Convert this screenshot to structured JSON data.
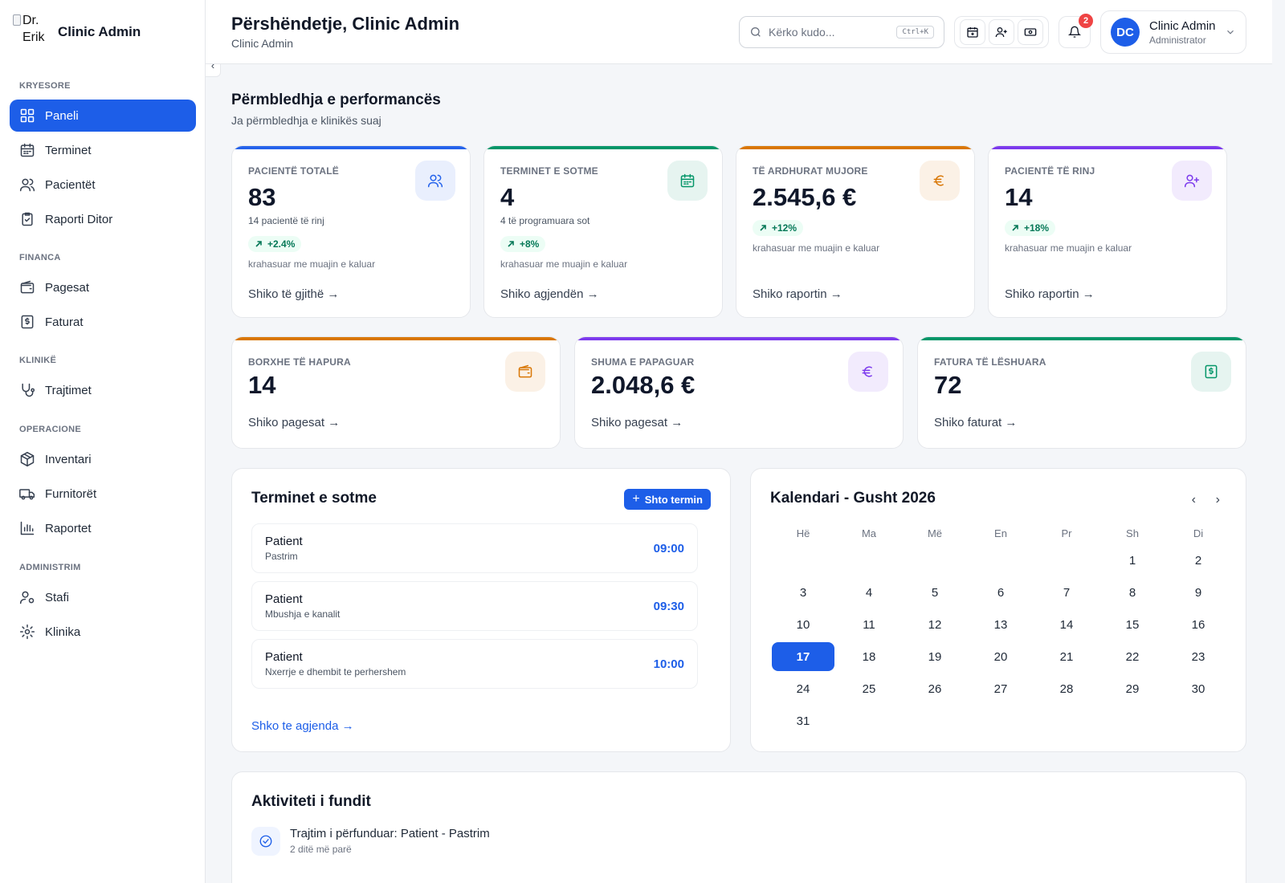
{
  "brand": {
    "logo_alt": "Dr. Erik",
    "name": "Clinic Admin"
  },
  "sidebar": {
    "sections": [
      {
        "title": "KRYESORE",
        "items": [
          {
            "label": "Paneli",
            "icon": "grid-icon",
            "active": true
          },
          {
            "label": "Terminet",
            "icon": "calendar-icon"
          },
          {
            "label": "Pacientët",
            "icon": "users-icon"
          },
          {
            "label": "Raporti Ditor",
            "icon": "clipboard-check-icon"
          }
        ]
      },
      {
        "title": "FINANCA",
        "items": [
          {
            "label": "Pagesat",
            "icon": "wallet-icon"
          },
          {
            "label": "Faturat",
            "icon": "invoice-icon"
          }
        ]
      },
      {
        "title": "KLINIKË",
        "items": [
          {
            "label": "Trajtimet",
            "icon": "stethoscope-icon"
          }
        ]
      },
      {
        "title": "OPERACIONE",
        "items": [
          {
            "label": "Inventari",
            "icon": "package-icon"
          },
          {
            "label": "Furnitorët",
            "icon": "truck-icon"
          },
          {
            "label": "Raportet",
            "icon": "bar-chart-icon"
          }
        ]
      },
      {
        "title": "ADMINISTRIM",
        "items": [
          {
            "label": "Stafi",
            "icon": "user-cog-icon"
          },
          {
            "label": "Klinika",
            "icon": "gear-icon"
          }
        ]
      }
    ]
  },
  "header": {
    "greeting": "Përshëndetje, Clinic Admin",
    "subtitle": "Clinic Admin",
    "search_placeholder": "Kërko kudo...",
    "search_shortcut": "Ctrl+K",
    "notification_count": "2",
    "user": {
      "initials": "DC",
      "name": "Clinic Admin",
      "role": "Administrator"
    }
  },
  "overview": {
    "title": "Përmbledhja e performancës",
    "subtitle": "Ja përmbledhja e klinikës suaj"
  },
  "stats_top": [
    {
      "label": "PACIENTË TOTALË",
      "value": "83",
      "sub": "14 pacientë të rinj",
      "trend": "+2.4%",
      "compare": "krahasuar me muajin e kaluar",
      "link": "Shiko të gjithë →",
      "color": "#2563eb",
      "icon": "users-icon"
    },
    {
      "label": "TERMINET E SOTME",
      "value": "4",
      "sub": "4 të programuara sot",
      "trend": "+8%",
      "compare": "krahasuar me muajin e kaluar",
      "link": "Shiko agjendën →",
      "color": "#059669",
      "icon": "calendar-icon"
    },
    {
      "label": "TË ARDHURAT MUJORE",
      "value": "2.545,6 €",
      "sub": "",
      "trend": "+12%",
      "compare": "krahasuar me muajin e kaluar",
      "link": "Shiko raportin →",
      "color": "#d97706",
      "icon": "euro-icon"
    },
    {
      "label": "PACIENTË TË RINJ",
      "value": "14",
      "sub": "",
      "trend": "+18%",
      "compare": "krahasuar me muajin e kaluar",
      "link": "Shiko raportin →",
      "color": "#7c3aed",
      "icon": "user-plus-icon"
    }
  ],
  "stats_bottom": [
    {
      "label": "BORXHE TË HAPURA",
      "value": "14",
      "link": "Shiko pagesat →",
      "color": "#d97706",
      "icon": "wallet-icon"
    },
    {
      "label": "SHUMA E PAPAGUAR",
      "value": "2.048,6 €",
      "link": "Shiko pagesat →",
      "color": "#7c3aed",
      "icon": "euro-icon"
    },
    {
      "label": "FATURA TË LËSHUARA",
      "value": "72",
      "link": "Shiko faturat →",
      "color": "#059669",
      "icon": "invoice-icon"
    }
  ],
  "appointments": {
    "title": "Terminet e sotme",
    "add_label": "Shto termin",
    "items": [
      {
        "patient": "Patient",
        "treatment": "Pastrim",
        "time": "09:00"
      },
      {
        "patient": "Patient",
        "treatment": "Mbushja e kanalit",
        "time": "09:30"
      },
      {
        "patient": "Patient",
        "treatment": "Nxerrje e dhembit te perhershem",
        "time": "10:00"
      }
    ],
    "agenda_link": "Shko te agjenda →"
  },
  "calendar": {
    "title": "Kalendari - Gusht 2026",
    "weekdays": [
      "Hë",
      "Ma",
      "Më",
      "En",
      "Pr",
      "Sh",
      "Di"
    ],
    "start_offset": 5,
    "days_in_month": 31,
    "today": 17
  },
  "activity": {
    "title": "Aktiviteti i fundit",
    "items": [
      {
        "text": "Trajtim i përfunduar: Patient - Pastrim",
        "when": "2 ditë më parë",
        "icon": "check-circle-icon"
      }
    ]
  }
}
